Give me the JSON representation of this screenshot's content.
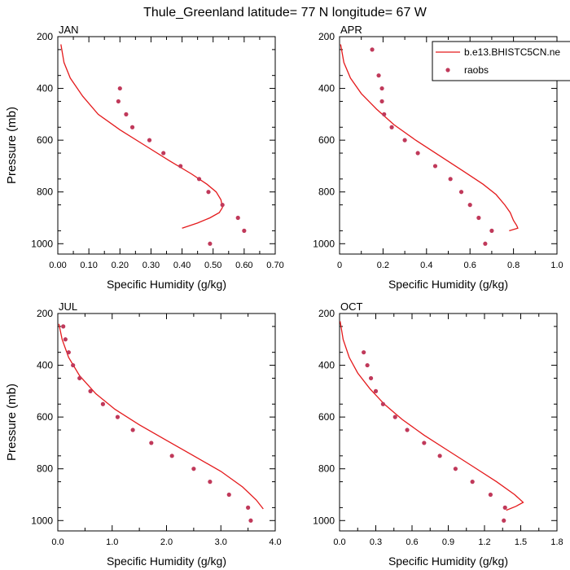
{
  "figure_title": "Thule_Greenland  latitude= 77 N longitude= 67 W",
  "colors": {
    "model": "#e41a1c",
    "obs": "#c0395a",
    "axis": "#000000"
  },
  "legend": {
    "model_label": "b.e13.BHISTC5CN.ne",
    "obs_label": "raobs",
    "placement": "top-right"
  },
  "chart_data": [
    {
      "type": "line",
      "title": "JAN",
      "xlabel": "Specific Humidity (g/kg)",
      "ylabel": "Pressure (mb)",
      "xlim": [
        0,
        0.7
      ],
      "ylim": [
        1040,
        200
      ],
      "x_ticks": [
        0,
        0.1,
        0.2,
        0.3,
        0.4,
        0.5,
        0.6,
        0.7
      ],
      "x_tick_labels": [
        "0.00",
        "0.10",
        "0.20",
        "0.30",
        "0.40",
        "0.50",
        "0.60",
        "0.70"
      ],
      "y_ticks": [
        200,
        400,
        600,
        800,
        1000
      ],
      "y_tick_labels": [
        "200",
        "400",
        "600",
        "800",
        "1000"
      ],
      "series": [
        {
          "name": "b.e13.BHISTC5CN.ne",
          "kind": "line",
          "x": [
            0.01,
            0.02,
            0.04,
            0.08,
            0.13,
            0.2,
            0.28,
            0.36,
            0.43,
            0.48,
            0.51,
            0.525,
            0.53,
            0.52,
            0.49,
            0.45,
            0.4
          ],
          "y": [
            230,
            300,
            360,
            430,
            500,
            560,
            620,
            680,
            730,
            770,
            800,
            830,
            860,
            880,
            900,
            920,
            940
          ]
        },
        {
          "name": "raobs",
          "kind": "scatter",
          "x": [
            0.2,
            0.195,
            0.22,
            0.24,
            0.295,
            0.34,
            0.395,
            0.455,
            0.485,
            0.53,
            0.58,
            0.6,
            0.49
          ],
          "y": [
            400,
            450,
            500,
            550,
            600,
            650,
            700,
            750,
            800,
            850,
            900,
            950,
            1000
          ]
        }
      ]
    },
    {
      "type": "line",
      "title": "APR",
      "xlabel": "Specific Humidity (g/kg)",
      "ylabel": "",
      "xlim": [
        0,
        1.0
      ],
      "ylim": [
        1040,
        200
      ],
      "x_ticks": [
        0,
        0.2,
        0.4,
        0.6,
        0.8,
        1.0
      ],
      "x_tick_labels": [
        "0",
        "0.2",
        "0.4",
        "0.6",
        "0.8",
        "1.0"
      ],
      "y_ticks": [
        200,
        400,
        600,
        800,
        1000
      ],
      "y_tick_labels": [
        "200",
        "400",
        "600",
        "800",
        "1000"
      ],
      "series": [
        {
          "name": "b.e13.BHISTC5CN.ne",
          "kind": "line",
          "x": [
            0.005,
            0.02,
            0.05,
            0.1,
            0.17,
            0.25,
            0.35,
            0.46,
            0.57,
            0.66,
            0.72,
            0.76,
            0.785,
            0.8,
            0.815,
            0.82,
            0.78
          ],
          "y": [
            230,
            300,
            360,
            420,
            480,
            540,
            600,
            660,
            720,
            770,
            810,
            850,
            880,
            910,
            930,
            940,
            950
          ]
        },
        {
          "name": "raobs",
          "kind": "scatter",
          "x": [
            0.15,
            0.18,
            0.195,
            0.195,
            0.205,
            0.24,
            0.3,
            0.36,
            0.44,
            0.51,
            0.56,
            0.6,
            0.64,
            0.7,
            0.67
          ],
          "y": [
            250,
            350,
            400,
            450,
            500,
            550,
            600,
            650,
            700,
            750,
            800,
            850,
            900,
            950,
            1000
          ]
        }
      ]
    },
    {
      "type": "line",
      "title": "JUL",
      "xlabel": "Specific Humidity (g/kg)",
      "ylabel": "Pressure (mb)",
      "xlim": [
        0,
        4.0
      ],
      "ylim": [
        1040,
        200
      ],
      "x_ticks": [
        0,
        1,
        2,
        3,
        4
      ],
      "x_tick_labels": [
        "0.0",
        "1.0",
        "2.0",
        "3.0",
        "4.0"
      ],
      "y_ticks": [
        200,
        400,
        600,
        800,
        1000
      ],
      "y_tick_labels": [
        "200",
        "400",
        "600",
        "800",
        "1000"
      ],
      "series": [
        {
          "name": "b.e13.BHISTC5CN.ne",
          "kind": "line",
          "x": [
            0.02,
            0.08,
            0.2,
            0.4,
            0.7,
            1.05,
            1.5,
            2.0,
            2.5,
            3.0,
            3.4,
            3.65,
            3.78
          ],
          "y": [
            240,
            300,
            370,
            440,
            510,
            570,
            630,
            690,
            750,
            810,
            870,
            920,
            955
          ]
        },
        {
          "name": "raobs",
          "kind": "scatter",
          "x": [
            0.1,
            0.14,
            0.2,
            0.28,
            0.4,
            0.6,
            0.83,
            1.1,
            1.38,
            1.72,
            2.1,
            2.5,
            2.8,
            3.15,
            3.5,
            3.55
          ],
          "y": [
            250,
            300,
            350,
            400,
            450,
            500,
            550,
            600,
            650,
            700,
            750,
            800,
            850,
            900,
            950,
            1000
          ]
        }
      ]
    },
    {
      "type": "line",
      "title": "OCT",
      "xlabel": "Specific Humidity (g/kg)",
      "ylabel": "",
      "xlim": [
        0,
        1.8
      ],
      "ylim": [
        1040,
        200
      ],
      "x_ticks": [
        0,
        0.3,
        0.6,
        0.9,
        1.2,
        1.5,
        1.8
      ],
      "x_tick_labels": [
        "0.0",
        "0.3",
        "0.6",
        "0.9",
        "1.2",
        "1.5",
        "1.8"
      ],
      "y_ticks": [
        200,
        400,
        600,
        800,
        1000
      ],
      "y_tick_labels": [
        "200",
        "400",
        "600",
        "800",
        "1000"
      ],
      "series": [
        {
          "name": "b.e13.BHISTC5CN.ne",
          "kind": "line",
          "x": [
            0.005,
            0.03,
            0.08,
            0.15,
            0.25,
            0.37,
            0.52,
            0.7,
            0.9,
            1.1,
            1.3,
            1.45,
            1.52,
            1.46,
            1.38
          ],
          "y": [
            230,
            300,
            370,
            430,
            490,
            550,
            610,
            670,
            730,
            790,
            850,
            900,
            930,
            945,
            960
          ]
        },
        {
          "name": "raobs",
          "kind": "scatter",
          "x": [
            0.2,
            0.23,
            0.26,
            0.3,
            0.36,
            0.46,
            0.56,
            0.7,
            0.83,
            0.96,
            1.1,
            1.25,
            1.37,
            1.36
          ],
          "y": [
            350,
            400,
            450,
            500,
            550,
            600,
            650,
            700,
            750,
            800,
            850,
            900,
            950,
            1000
          ]
        }
      ]
    }
  ]
}
